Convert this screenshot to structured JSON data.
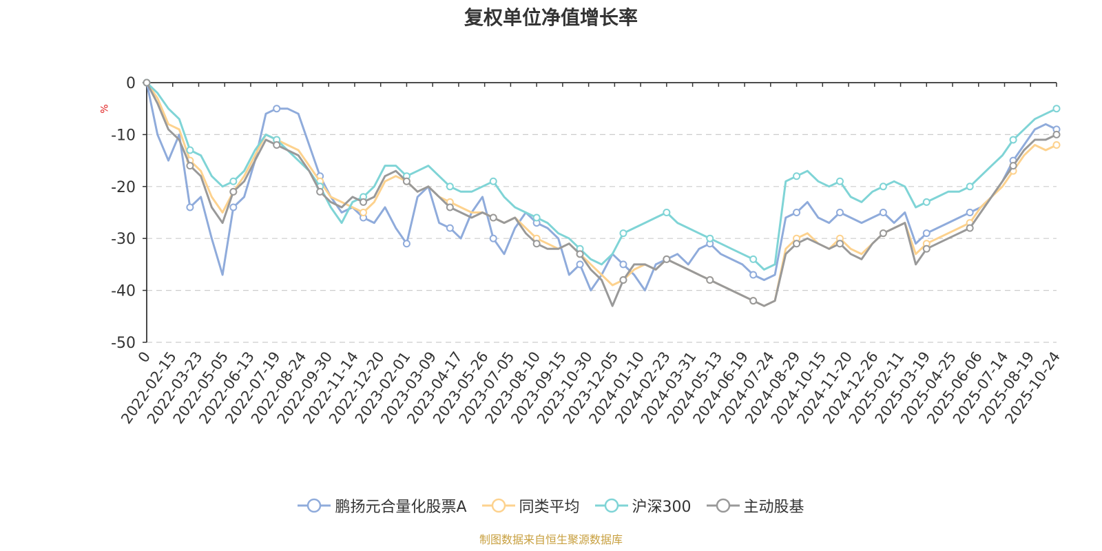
{
  "chart_data": {
    "type": "line",
    "title": "复权单位净值增长率",
    "ylabel": "%",
    "ylim": [
      -50,
      0
    ],
    "yticks": [
      0,
      -10,
      -20,
      -30,
      -40,
      -50
    ],
    "x_tick_labels": [
      "0",
      "2022-02-15",
      "2022-03-23",
      "2022-05-05",
      "2022-06-13",
      "2022-07-19",
      "2022-08-24",
      "2022-09-30",
      "2022-11-14",
      "2022-12-20",
      "2023-02-01",
      "2023-03-09",
      "2023-04-17",
      "2023-05-26",
      "2023-07-05",
      "2023-08-10",
      "2023-09-15",
      "2023-10-30",
      "2023-12-05",
      "2024-01-10",
      "2024-02-23",
      "2024-03-31",
      "2024-05-13",
      "2024-06-19",
      "2024-07-24",
      "2024-08-29",
      "2024-10-15",
      "2024-11-20",
      "2024-12-26",
      "2025-02-11",
      "2025-03-19",
      "2025-04-25",
      "2025-06-06",
      "2025-07-14",
      "2025-08-19",
      "2025-10-24"
    ],
    "grid": true,
    "legend_position": "bottom-center",
    "series": [
      {
        "name": "鹏扬元合量化股票A",
        "color": "#8fabdb",
        "values": [
          0,
          -10,
          -15,
          -10,
          -24,
          -22,
          -30,
          -37,
          -24,
          -22,
          -15,
          -6,
          -5,
          -5,
          -6,
          -12,
          -18,
          -22,
          -25,
          -24,
          -26,
          -27,
          -24,
          -28,
          -31,
          -22,
          -20,
          -27,
          -28,
          -30,
          -25,
          -22,
          -30,
          -33,
          -28,
          -25,
          -27,
          -28,
          -30,
          -37,
          -35,
          -40,
          -37,
          -33,
          -35,
          -37,
          -40,
          -35,
          -34,
          -33,
          -35,
          -32,
          -31,
          -33,
          -34,
          -35,
          -37,
          -38,
          -37,
          -26,
          -25,
          -23,
          -26,
          -27,
          -25,
          -26,
          -27,
          -26,
          -25,
          -27,
          -25,
          -31,
          -29,
          -28,
          -27,
          -26,
          -25,
          -24,
          -22,
          -19,
          -15,
          -12,
          -9,
          -8,
          -9
        ]
      },
      {
        "name": "同类平均",
        "color": "#fdd28e",
        "values": [
          0,
          -3,
          -8,
          -9,
          -15,
          -17,
          -22,
          -25,
          -21,
          -18,
          -14,
          -10,
          -11,
          -12,
          -13,
          -16,
          -19,
          -22,
          -23,
          -24,
          -25,
          -23,
          -19,
          -18,
          -19,
          -21,
          -20,
          -22,
          -23,
          -24,
          -25,
          -25,
          -26,
          -27,
          -26,
          -28,
          -30,
          -31,
          -32,
          -31,
          -33,
          -35,
          -37,
          -39,
          -38,
          -36,
          -35,
          -36,
          -34,
          -35,
          -36,
          -37,
          -38,
          -39,
          -40,
          -41,
          -42,
          -43,
          -42,
          -32,
          -30,
          -29,
          -31,
          -32,
          -30,
          -32,
          -33,
          -31,
          -29,
          -28,
          -27,
          -33,
          -31,
          -30,
          -29,
          -28,
          -27,
          -24,
          -22,
          -20,
          -17,
          -14,
          -12,
          -13,
          -12
        ]
      },
      {
        "name": "沪深300",
        "color": "#7fd4d6",
        "values": [
          0,
          -2,
          -5,
          -7,
          -13,
          -14,
          -18,
          -20,
          -19,
          -17,
          -13,
          -10,
          -11,
          -13,
          -15,
          -17,
          -20,
          -24,
          -27,
          -23,
          -22,
          -20,
          -16,
          -16,
          -18,
          -17,
          -16,
          -18,
          -20,
          -21,
          -21,
          -20,
          -19,
          -22,
          -24,
          -25,
          -26,
          -27,
          -29,
          -30,
          -32,
          -34,
          -35,
          -33,
          -29,
          -28,
          -27,
          -26,
          -25,
          -27,
          -28,
          -29,
          -30,
          -31,
          -32,
          -33,
          -34,
          -36,
          -35,
          -19,
          -18,
          -17,
          -19,
          -20,
          -19,
          -22,
          -23,
          -21,
          -20,
          -19,
          -20,
          -24,
          -23,
          -22,
          -21,
          -21,
          -20,
          -18,
          -16,
          -14,
          -11,
          -9,
          -7,
          -6,
          -5
        ]
      },
      {
        "name": "主动股基",
        "color": "#999999",
        "values": [
          0,
          -4,
          -9,
          -11,
          -16,
          -18,
          -24,
          -27,
          -21,
          -19,
          -15,
          -11,
          -12,
          -13,
          -14,
          -17,
          -21,
          -23,
          -24,
          -22,
          -23,
          -22,
          -18,
          -17,
          -19,
          -21,
          -20,
          -22,
          -24,
          -25,
          -26,
          -25,
          -26,
          -27,
          -26,
          -29,
          -31,
          -32,
          -32,
          -31,
          -33,
          -36,
          -38,
          -43,
          -38,
          -35,
          -35,
          -36,
          -34,
          -35,
          -36,
          -37,
          -38,
          -39,
          -40,
          -41,
          -42,
          -43,
          -42,
          -33,
          -31,
          -30,
          -31,
          -32,
          -31,
          -33,
          -34,
          -31,
          -29,
          -28,
          -27,
          -35,
          -32,
          -31,
          -30,
          -29,
          -28,
          -25,
          -22,
          -19,
          -16,
          -13,
          -11,
          -11,
          -10
        ]
      }
    ]
  },
  "source_note": "制图数据来自恒生聚源数据库"
}
